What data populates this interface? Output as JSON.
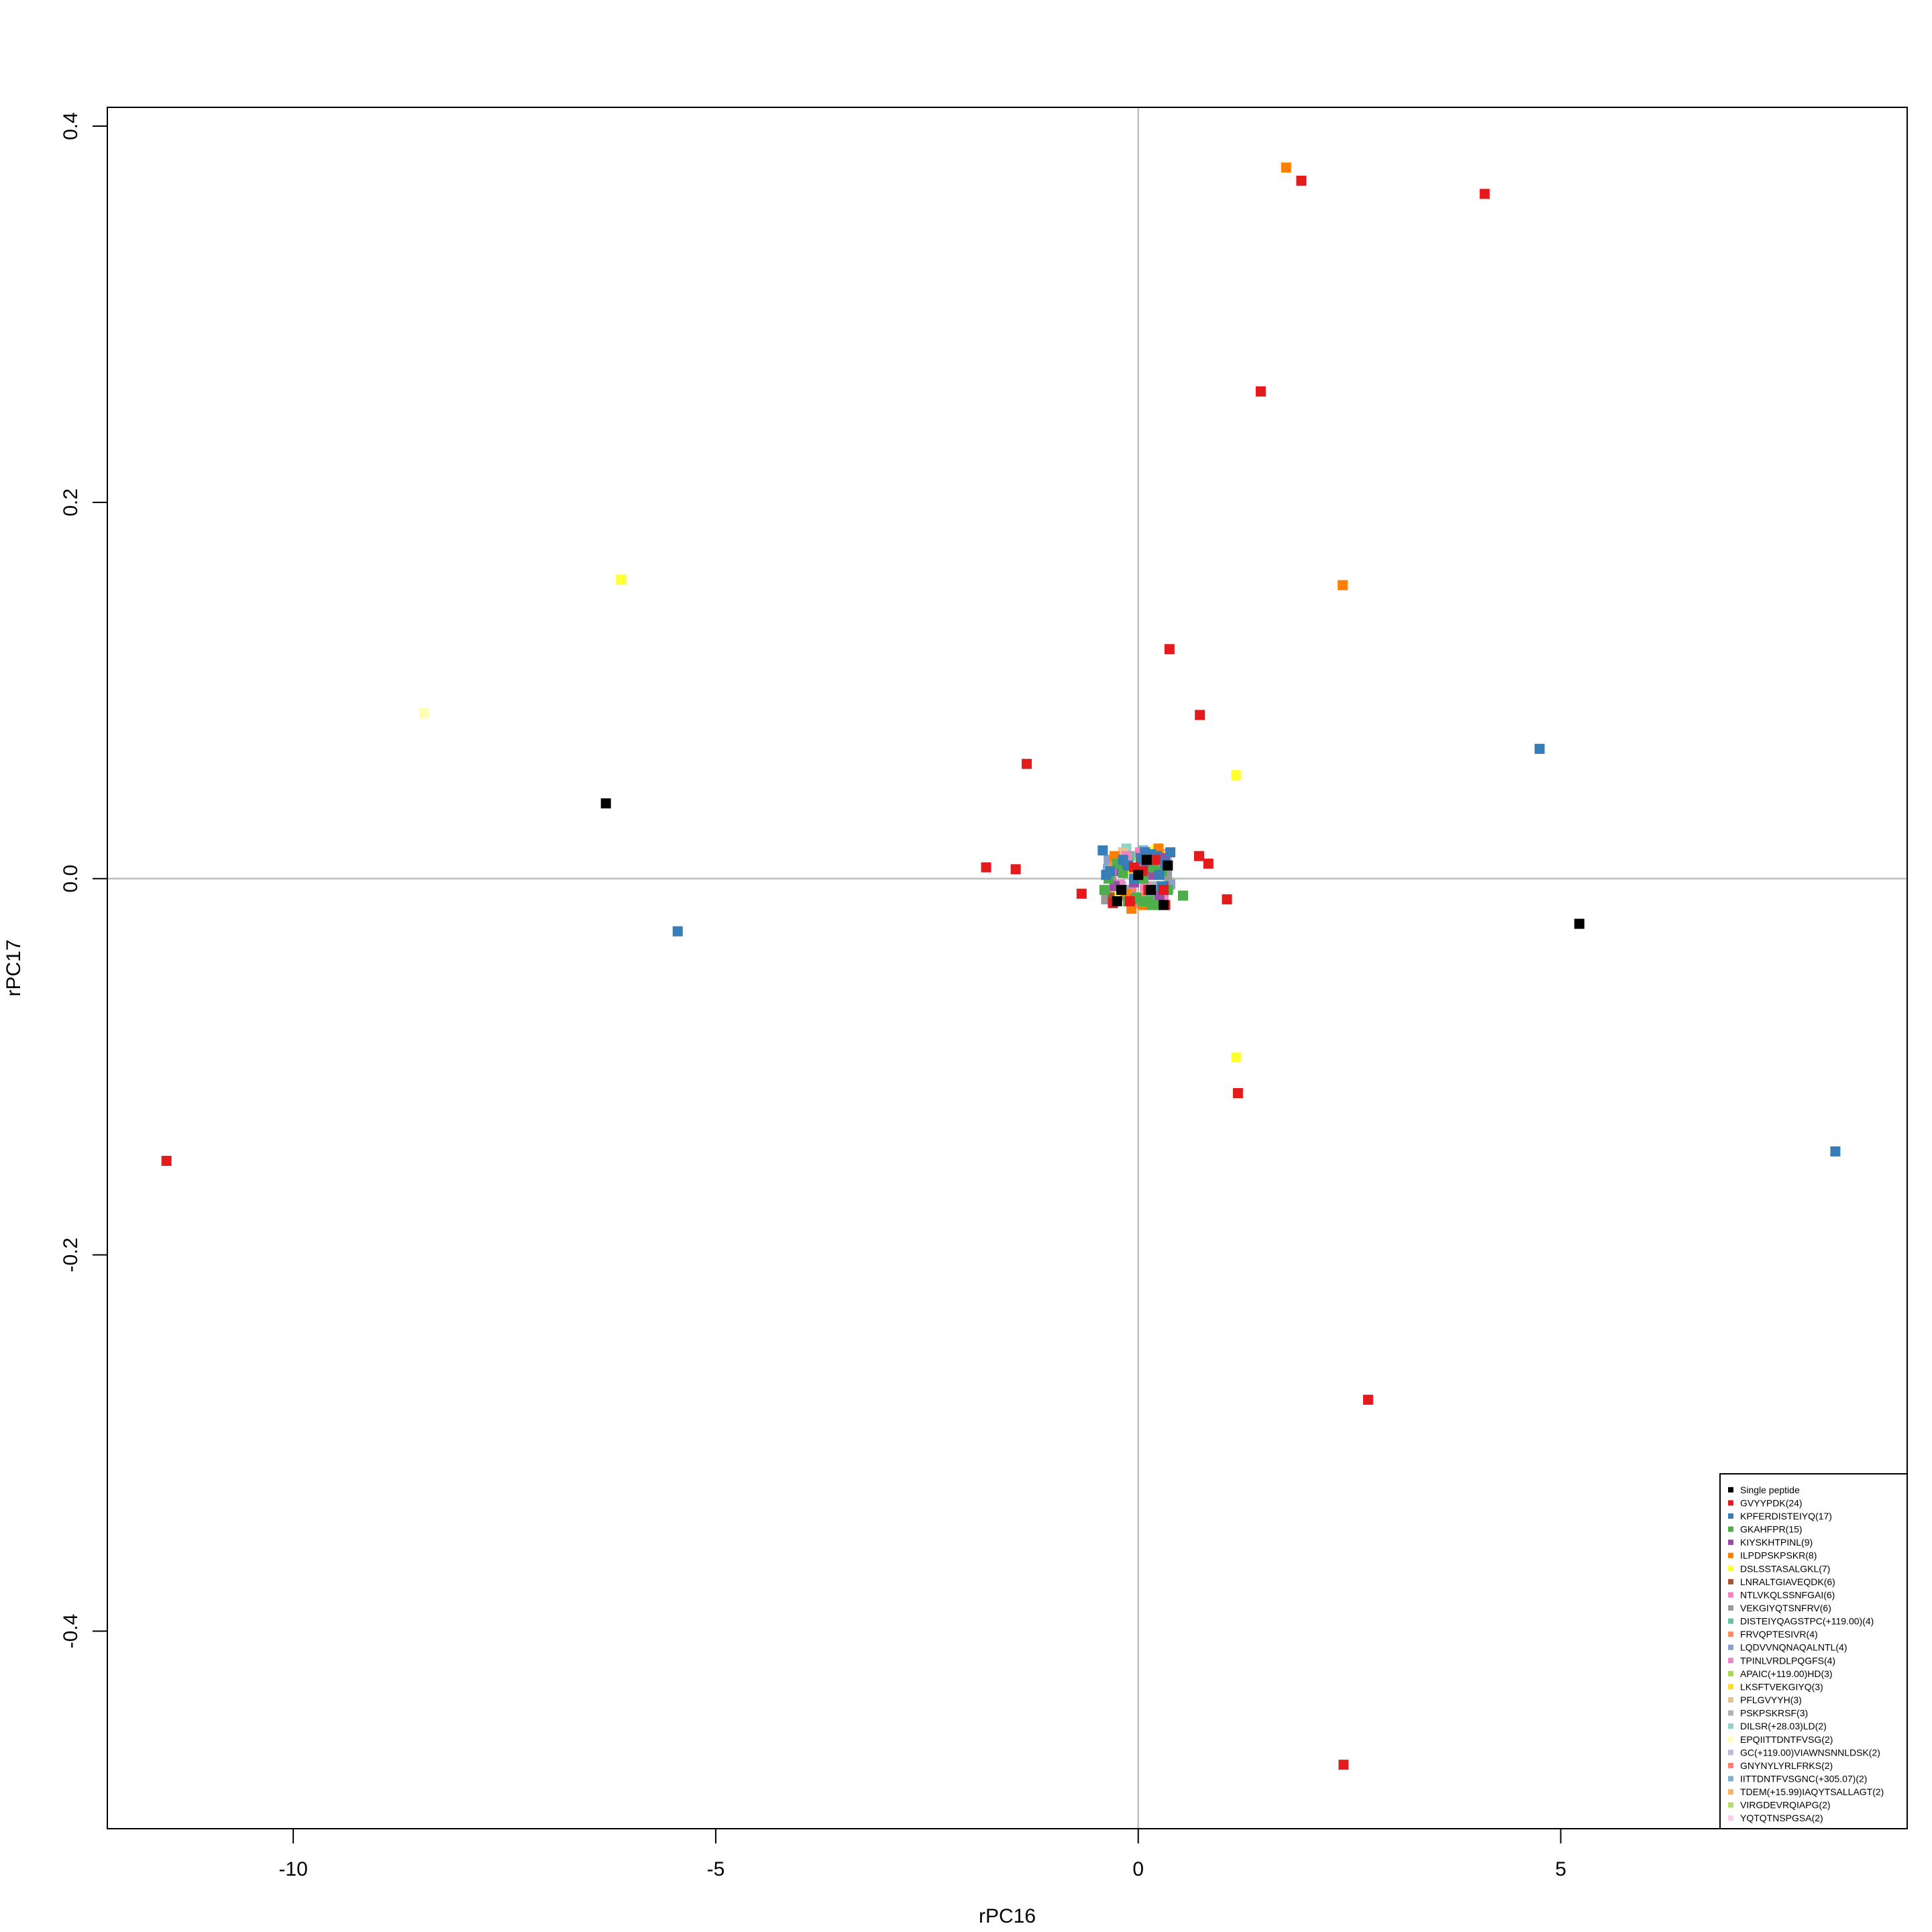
{
  "chart_data": {
    "type": "scatter",
    "title": "",
    "xlabel": "rPC16",
    "ylabel": "rPC17",
    "xlim": [
      -12.2,
      9.1
    ],
    "ylim": [
      -0.505,
      0.41
    ],
    "x_ticks": [
      -10,
      -5,
      0,
      5
    ],
    "x_tick_labels": [
      "-10",
      "-5",
      "0",
      "5"
    ],
    "y_ticks": [
      -0.4,
      -0.2,
      0.0,
      0.2,
      0.4
    ],
    "y_tick_labels": [
      "-0.4",
      "-0.2",
      "0.0",
      "0.2",
      "0.4"
    ],
    "reference_lines": {
      "x": 0,
      "y": 0,
      "color": "#bebebe"
    },
    "legend_position": "bottom-right",
    "marker": "square",
    "series": [
      {
        "name": "Single peptide",
        "color": "#000000",
        "x": [
          -6.3,
          5.22,
          -0.2,
          0.0,
          0.15,
          0.3,
          -0.25,
          0.35,
          0.1
        ],
        "y": [
          0.04,
          -0.024,
          -0.006,
          0.002,
          -0.006,
          -0.014,
          -0.012,
          0.007,
          0.01
        ]
      },
      {
        "name": "GVYYPDK(24)",
        "color": "#e41a1c",
        "x": [
          1.93,
          4.1,
          1.45,
          0.37,
          0.73,
          -1.32,
          -1.8,
          -1.45,
          0.72,
          0.83,
          -0.67,
          1.05,
          1.18,
          -11.5,
          2.72,
          2.43,
          0.3,
          -0.1,
          0.05,
          0.2,
          0.32,
          -0.3,
          0.12,
          -0.05
        ],
        "y": [
          0.371,
          0.364,
          0.259,
          0.122,
          0.087,
          0.061,
          0.006,
          0.005,
          0.012,
          0.008,
          -0.008,
          -0.011,
          -0.114,
          -0.15,
          -0.277,
          -0.471,
          -0.006,
          -0.012,
          0.004,
          0.01,
          -0.014,
          -0.013,
          -0.006,
          0.006
        ]
      },
      {
        "name": "KPFERDISTEIYQ(17)",
        "color": "#377eb8",
        "x": [
          4.75,
          -5.45,
          8.25,
          -0.42,
          -0.18,
          0.22,
          0.32,
          -0.33,
          0.08,
          0.25,
          -0.05,
          0.15,
          0.38,
          -0.12,
          0.28,
          -0.38,
          0.03
        ],
        "y": [
          0.069,
          -0.028,
          -0.145,
          0.015,
          0.01,
          0.012,
          0.008,
          0.004,
          0.014,
          0.002,
          0.0,
          0.013,
          0.014,
          0.007,
          -0.004,
          0.002,
          0.011
        ]
      },
      {
        "name": "GKAHFPR(15)",
        "color": "#4daf4a",
        "x": [
          0.53,
          -0.4,
          -0.12,
          0.05,
          0.22,
          -0.25,
          0.12,
          -0.02,
          0.35,
          -0.35,
          0.28,
          0.18,
          -0.18,
          0.06,
          0.16
        ],
        "y": [
          -0.009,
          -0.006,
          -0.012,
          -0.012,
          -0.014,
          0.008,
          -0.012,
          -0.01,
          -0.006,
          0.0,
          0.004,
          0.006,
          0.003,
          0.0,
          -0.014
        ]
      },
      {
        "name": "KIYSKHTPINL(9)",
        "color": "#984ea3",
        "x": [
          -0.12,
          0.05,
          0.18,
          -0.28,
          0.32,
          -0.05,
          0.1,
          0.25,
          -0.2
        ],
        "y": [
          0.007,
          0.01,
          0.002,
          -0.004,
          0.011,
          -0.002,
          0.006,
          -0.009,
          0.004
        ]
      },
      {
        "name": "ILPDPSKPSKR(8)",
        "color": "#ff7f00",
        "x": [
          1.75,
          2.42,
          -0.08,
          0.18,
          -0.28,
          0.05,
          0.24,
          -0.15
        ],
        "y": [
          0.378,
          0.156,
          -0.016,
          0.011,
          0.012,
          -0.014,
          0.016,
          -0.008
        ]
      },
      {
        "name": "DSLSSTASALGKL(7)",
        "color": "#ffff33",
        "x": [
          -6.12,
          1.16,
          1.16,
          0.2,
          -0.1,
          0.28,
          -0.22
        ],
        "y": [
          0.159,
          0.055,
          -0.095,
          0.015,
          0.005,
          0.012,
          -0.008
        ]
      },
      {
        "name": "LNRALTGIAVEQDK(6)",
        "color": "#a65628",
        "x": [
          -0.22,
          0.12,
          0.3,
          -0.08,
          0.2,
          -0.3
        ],
        "y": [
          0.009,
          0.003,
          -0.004,
          -0.011,
          0.013,
          -0.01
        ]
      },
      {
        "name": "NTLVKQLSSNFGAI(6)",
        "color": "#f781bf",
        "x": [
          0.3,
          -0.14,
          0.08,
          -0.3,
          0.22,
          0.02
        ],
        "y": [
          -0.009,
          0.012,
          -0.004,
          0.004,
          0.008,
          0.014
        ]
      },
      {
        "name": "VEKGIYQTSNFRV(6)",
        "color": "#999999",
        "x": [
          -0.38,
          -0.2,
          0.04,
          0.22,
          -0.32,
          0.34
        ],
        "y": [
          -0.011,
          -0.009,
          0.008,
          -0.006,
          0.001,
          0.002
        ]
      },
      {
        "name": "DISTEIYQAGSTPC(+119.00)(4)",
        "color": "#66c2a5",
        "x": [
          -0.32,
          0.14,
          0.28,
          -0.1
        ],
        "y": [
          0.004,
          -0.009,
          0.005,
          0.012
        ]
      },
      {
        "name": "FRVQPTESIVR(4)",
        "color": "#fc8d62",
        "x": [
          -0.28,
          0.18,
          0.05,
          0.3
        ],
        "y": [
          0.008,
          0.005,
          -0.01,
          -0.007
        ]
      },
      {
        "name": "LQDVVNQNAQALNTL(4)",
        "color": "#8da0cb",
        "x": [
          -0.15,
          0.25,
          0.38,
          -0.35
        ],
        "y": [
          -0.006,
          0.011,
          -0.003,
          0.01
        ]
      },
      {
        "name": "TPINLVRDLPQGFS(4)",
        "color": "#e78ac3",
        "x": [
          0.1,
          -0.22,
          0.32,
          -0.05
        ],
        "y": [
          0.01,
          -0.003,
          0.013,
          -0.013
        ]
      },
      {
        "name": "APAIC(+119.00)HD(3)",
        "color": "#a6d854",
        "x": [
          -0.3,
          0.15,
          0.36
        ],
        "y": [
          0.007,
          -0.012,
          -0.002
        ]
      },
      {
        "name": "LKSFTVEKGIYQ(3)",
        "color": "#ffd92f",
        "x": [
          -0.05,
          0.26,
          -0.26
        ],
        "y": [
          0.012,
          0.003,
          -0.006
        ]
      },
      {
        "name": "PFLGVYYH(3)",
        "color": "#e5c494",
        "x": [
          0.08,
          -0.18,
          0.3
        ],
        "y": [
          -0.006,
          0.014,
          0.008
        ]
      },
      {
        "name": "PSKPSKRSF(3)",
        "color": "#b3b3b3",
        "x": [
          -0.34,
          0.2,
          0.02
        ],
        "y": [
          -0.009,
          -0.004,
          0.006
        ]
      },
      {
        "name": "DILSR(+28.03)LD(2)",
        "color": "#8dd3c7",
        "x": [
          -0.14,
          0.28
        ],
        "y": [
          0.016,
          -0.012
        ]
      },
      {
        "name": "EPQIITTDNTFVSG(2)",
        "color": "#ffffb3",
        "x": [
          -8.45,
          0.12
        ],
        "y": [
          0.088,
          0.01
        ]
      },
      {
        "name": "GC(+119.00)VIAWNSNNLDSK(2)",
        "color": "#bebada",
        "x": [
          0.34,
          -0.2
        ],
        "y": [
          0.012,
          -0.004
        ]
      },
      {
        "name": "GNYNYLYRLFRKS(2)",
        "color": "#fb8072",
        "x": [
          0.18,
          -0.08
        ],
        "y": [
          -0.014,
          -0.007
        ]
      },
      {
        "name": "IITTDNTFVSGNC(+305.07)(2)",
        "color": "#80b1d3",
        "x": [
          -0.36,
          0.06
        ],
        "y": [
          0.005,
          0.015
        ]
      },
      {
        "name": "TDEM(+15.99)IAQYTSALLAGT(2)",
        "color": "#fdb462",
        "x": [
          0.22,
          -0.28
        ],
        "y": [
          0.006,
          0.01
        ]
      },
      {
        "name": "VIRGDEVRQIAPG(2)",
        "color": "#b3de69",
        "x": [
          0.36,
          -0.02
        ],
        "y": [
          -0.005,
          -0.011
        ]
      },
      {
        "name": "YQTQTNSPGSA(2)",
        "color": "#fccde5",
        "x": [
          -0.24,
          0.26
        ],
        "y": [
          -0.002,
          0.004
        ]
      }
    ]
  }
}
